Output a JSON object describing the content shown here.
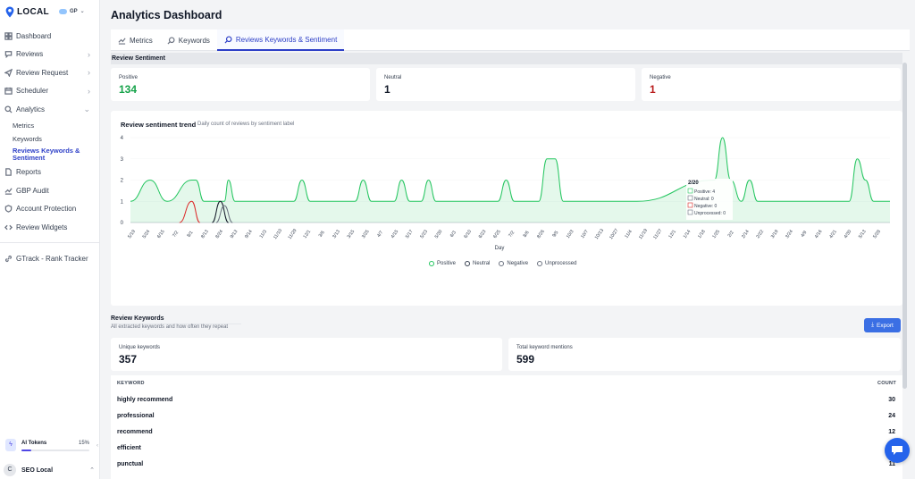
{
  "app": {
    "logo_text": "LOCAL",
    "account": "GP"
  },
  "sidebar": {
    "items": [
      {
        "label": "Dashboard",
        "icon": "grid-icon"
      },
      {
        "label": "Reviews",
        "icon": "chat-icon",
        "chevron": "›"
      },
      {
        "label": "Review Request",
        "icon": "send-icon",
        "chevron": "›"
      },
      {
        "label": "Scheduler",
        "icon": "calendar-icon",
        "chevron": "›"
      },
      {
        "label": "Analytics",
        "icon": "search-icon",
        "chevron": "⌄"
      }
    ],
    "analytics_sub": [
      "Metrics",
      "Keywords",
      "Reviews Keywords & Sentiment"
    ],
    "more_items": [
      {
        "label": "Reports",
        "icon": "document-icon"
      },
      {
        "label": "GBP Audit",
        "icon": "chart-icon"
      },
      {
        "label": "Account Protection",
        "icon": "shield-icon"
      },
      {
        "label": "Review Widgets",
        "icon": "code-icon"
      }
    ],
    "gtrack": "GTrack - Rank Tracker",
    "tokens_label": "AI Tokens",
    "tokens_pct": "15%",
    "tokens_value": 0.15,
    "user_initial": "C",
    "user_name": "SEO Local"
  },
  "header": {
    "title": "Analytics Dashboard"
  },
  "tabs": [
    {
      "label": "Metrics",
      "icon": "line-chart-icon"
    },
    {
      "label": "Keywords",
      "icon": "search-icon"
    },
    {
      "label": "Reviews Keywords & Sentiment",
      "icon": "search-icon",
      "active": true
    }
  ],
  "sentiment": {
    "section_title": "Review Sentiment",
    "positive_label": "Positive",
    "positive_value": "134",
    "neutral_label": "Neutral",
    "neutral_value": "1",
    "negative_label": "Negative",
    "negative_value": "1",
    "colors": {
      "positive": "#16a34a",
      "neutral": "#111827",
      "negative": "#b91c1c"
    }
  },
  "chart": {
    "title": "Review sentiment trend",
    "subtitle": "Daily count of reviews by sentiment label",
    "xlabel": "Day",
    "legend": [
      "Positive",
      "Neutral",
      "Negative",
      "Unprocessed"
    ],
    "tooltip": {
      "title": "2/20",
      "rows": [
        "Positive: 4",
        "Neutral: 0",
        "Negative: 0",
        "Unprocessed: 0"
      ]
    }
  },
  "chart_data": {
    "type": "line",
    "ylim": [
      0,
      4
    ],
    "yticks": [
      "0",
      "1",
      "2",
      "3",
      "4"
    ],
    "x_ticks": [
      "5/19",
      "5/24",
      "6/15",
      "7/2",
      "8/1",
      "8/13",
      "8/24",
      "9/13",
      "9/14",
      "11/3",
      "11/10",
      "11/29",
      "12/1",
      "3/6",
      "3/13",
      "3/15",
      "3/25",
      "4/7",
      "4/15",
      "5/17",
      "5/23",
      "5/30",
      "6/3",
      "6/10",
      "6/23",
      "6/25",
      "7/2",
      "8/6",
      "8/26",
      "9/5",
      "10/3",
      "10/7",
      "10/13",
      "10/27",
      "11/4",
      "11/19",
      "11/27",
      "12/1",
      "1/14",
      "1/18",
      "1/25",
      "2/2",
      "2/14",
      "2/22",
      "3/19",
      "3/24",
      "4/9",
      "4/16",
      "4/21",
      "4/30",
      "5/13",
      "5/28"
    ],
    "series": [
      {
        "name": "Positive",
        "color": "#22c55e",
        "fill": "rgba(34,197,94,0.12)",
        "points": [
          [
            0,
            1
          ],
          [
            2.4,
            2
          ],
          [
            4.5,
            1
          ],
          [
            7.5,
            2
          ],
          [
            8,
            2
          ],
          [
            9,
            1
          ],
          [
            11.5,
            1
          ],
          [
            12,
            2
          ],
          [
            12.8,
            1
          ],
          [
            20,
            1
          ],
          [
            21,
            2
          ],
          [
            22,
            1
          ],
          [
            27.5,
            1
          ],
          [
            28.5,
            2
          ],
          [
            29.5,
            1
          ],
          [
            32.3,
            1
          ],
          [
            33.2,
            2
          ],
          [
            34.2,
            1
          ],
          [
            35.6,
            1
          ],
          [
            36.5,
            2
          ],
          [
            37.4,
            1
          ],
          [
            45,
            1
          ],
          [
            46,
            2
          ],
          [
            47,
            1
          ],
          [
            50,
            1
          ],
          [
            51,
            3
          ],
          [
            52,
            3
          ],
          [
            53,
            1
          ],
          [
            61,
            1
          ],
          [
            62,
            1
          ],
          [
            71.5,
            2
          ],
          [
            72.5,
            4
          ],
          [
            73.5,
            2
          ],
          [
            74.8,
            1
          ],
          [
            75.8,
            2
          ],
          [
            76.8,
            1
          ],
          [
            88,
            1
          ],
          [
            89,
            3
          ],
          [
            90,
            2
          ],
          [
            91,
            1
          ],
          [
            93,
            1
          ]
        ]
      },
      {
        "name": "Neutral",
        "color": "#111827",
        "points": [
          [
            10,
            0
          ],
          [
            11,
            1
          ],
          [
            12,
            0
          ]
        ]
      },
      {
        "name": "Negative",
        "color": "#dc2626",
        "points": [
          [
            6,
            0
          ],
          [
            7.5,
            1
          ],
          [
            8.5,
            0
          ]
        ]
      },
      {
        "name": "Unprocessed",
        "color": "#6b7280",
        "points": [
          [
            10.5,
            0
          ],
          [
            11.5,
            0.8
          ],
          [
            12.5,
            0
          ]
        ]
      }
    ]
  },
  "keywords": {
    "title": "Review Keywords",
    "subtitle": "All extracted keywords and how often they repeat",
    "export_label": "Export",
    "unique_label": "Unique keywords",
    "unique_value": "357",
    "total_label": "Total keyword mentions",
    "total_value": "599",
    "col_keyword": "KEYWORD",
    "col_count": "COUNT",
    "rows": [
      {
        "keyword": "highly recommend",
        "count": "30"
      },
      {
        "keyword": "professional",
        "count": "24"
      },
      {
        "keyword": "recommend",
        "count": "12"
      },
      {
        "keyword": "efficient",
        "count": ""
      },
      {
        "keyword": "punctual",
        "count": "11"
      }
    ]
  }
}
